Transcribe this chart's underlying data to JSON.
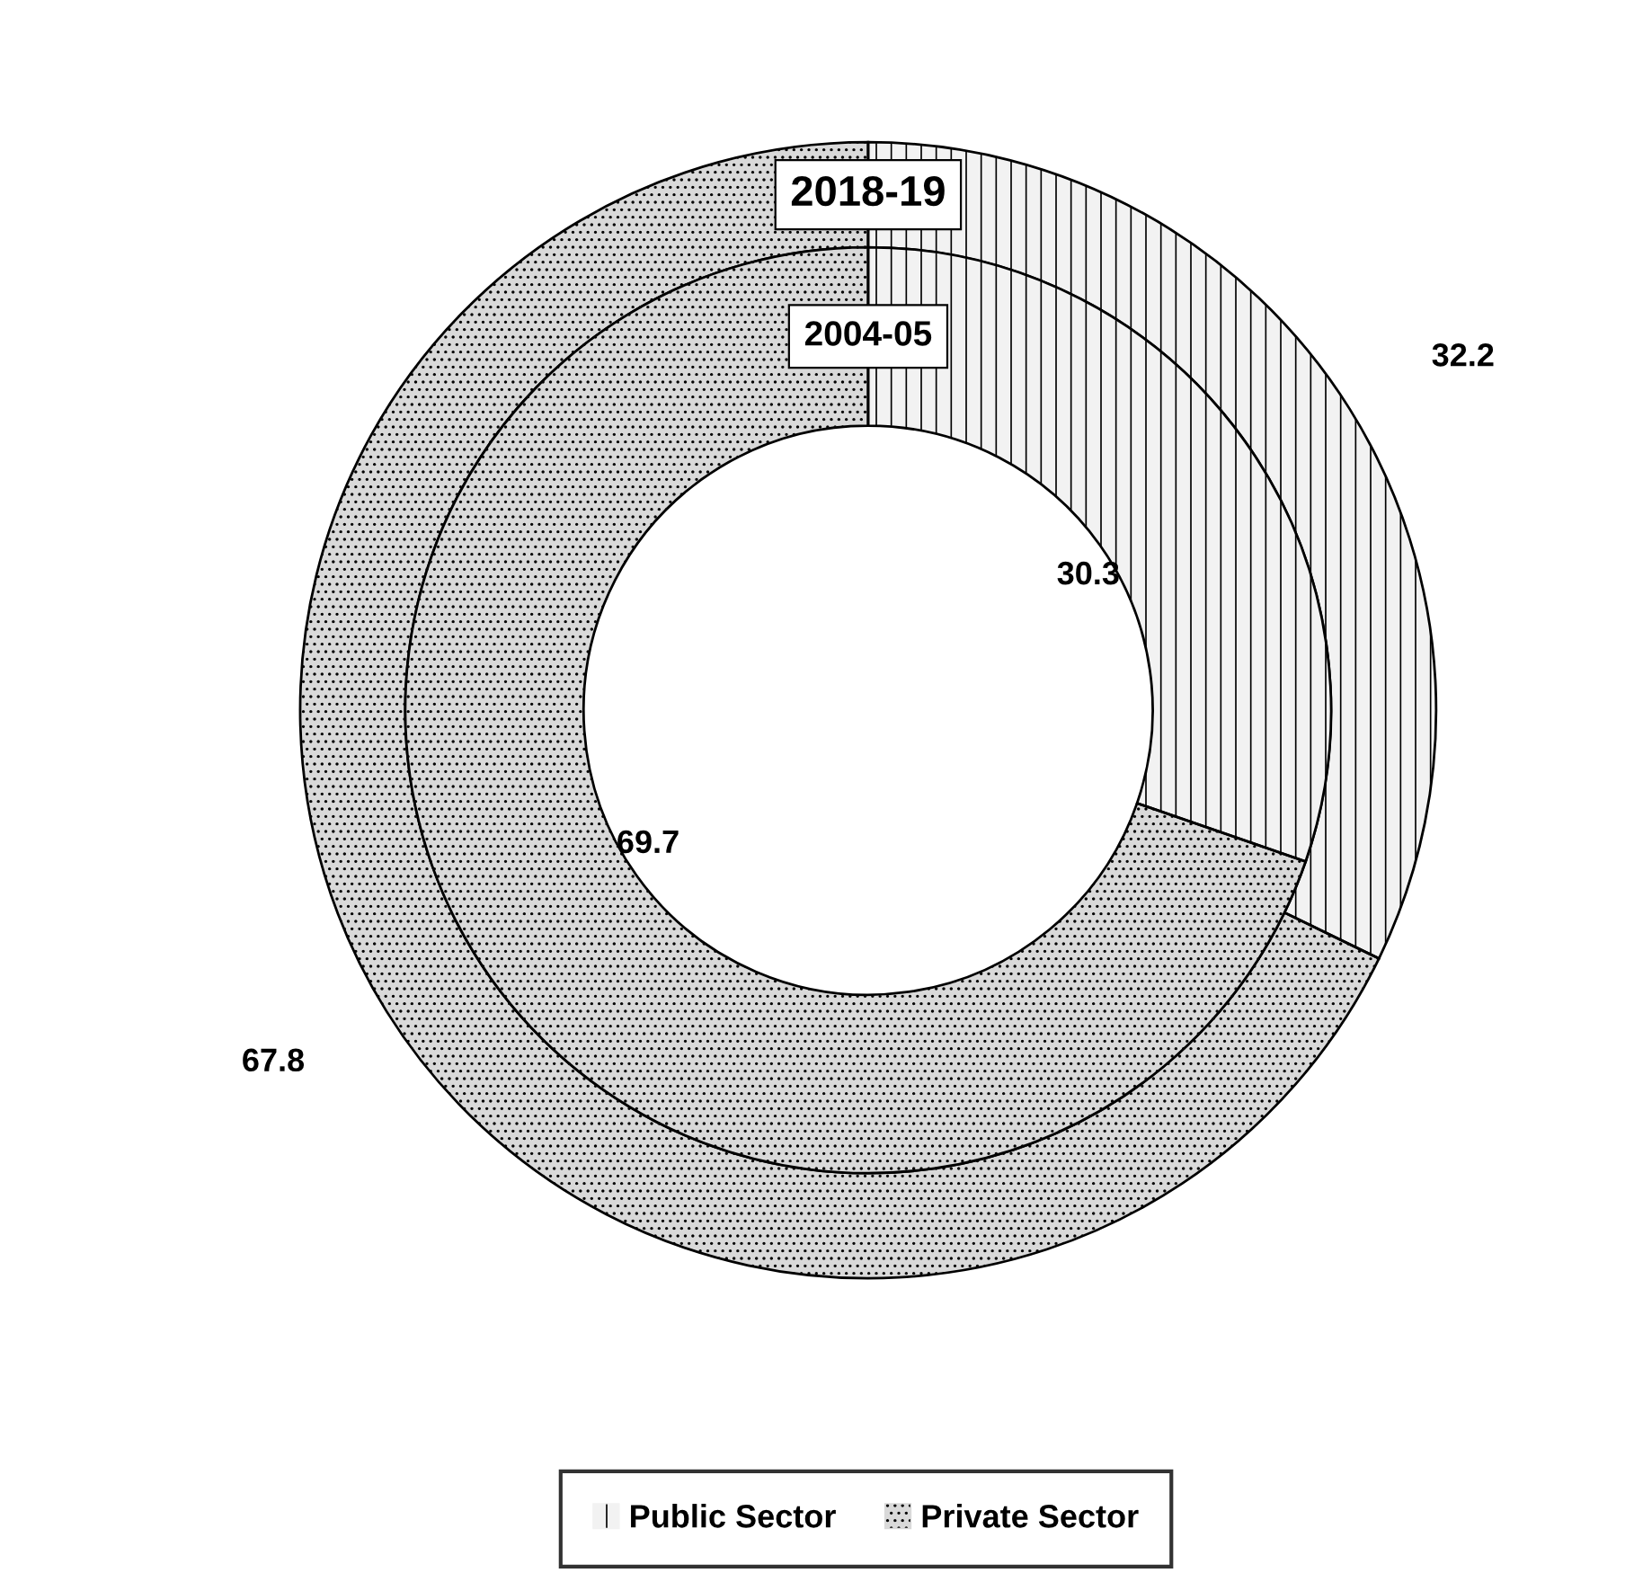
{
  "chart_data": {
    "type": "donut",
    "categories": [
      "Public Sector",
      "Private Sector"
    ],
    "colors": [
      "#f2f2f2",
      "#d9d9d9"
    ],
    "series": [
      {
        "name": "2018-19",
        "values": [
          32.2,
          67.8
        ]
      },
      {
        "name": "2004-05",
        "values": [
          30.3,
          69.7
        ]
      }
    ],
    "data_labels": true,
    "legend": "bottom"
  }
}
